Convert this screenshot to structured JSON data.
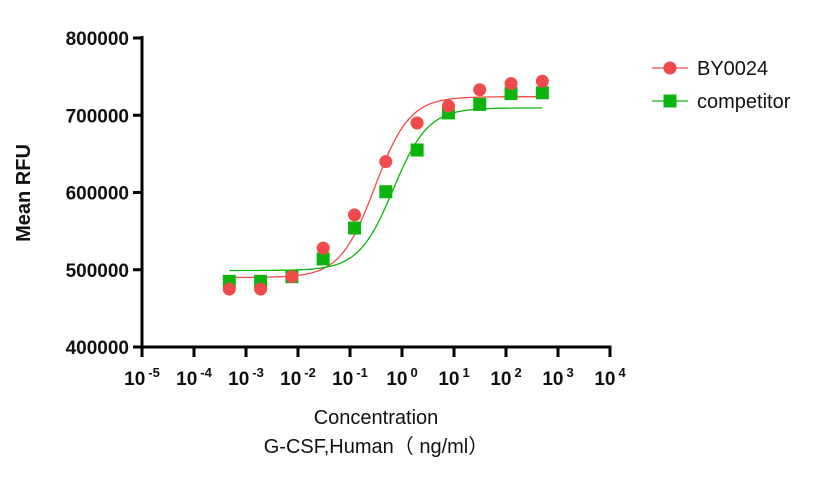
{
  "chart_data": {
    "type": "scatter",
    "title": "",
    "xlabel": "Concentration",
    "xlabel_line2": "G-CSF,Human（ ng/ml）",
    "ylabel": "Mean RFU",
    "xscale": "log",
    "xlim": [
      1e-05,
      10000
    ],
    "ylim": [
      400000,
      800000
    ],
    "x_ticks": [
      "10^-5",
      "10^-4",
      "10^-3",
      "10^-2",
      "10^-1",
      "10^0",
      "10^1",
      "10^2",
      "10^3",
      "10^4"
    ],
    "y_ticks": [
      "400000",
      "500000",
      "600000",
      "700000",
      "800000"
    ],
    "grid": false,
    "legend": "right",
    "x": [
      0.000477,
      0.00191,
      0.00763,
      0.0305,
      0.122,
      0.488,
      1.953,
      7.8125,
      31.25,
      125,
      500
    ],
    "series": [
      {
        "name": "BY0024",
        "marker": "circle",
        "color": "#f04a4a",
        "values": [
          475000,
          475000,
          491000,
          528000,
          571000,
          640000,
          690000,
          712000,
          733000,
          741000,
          744000
        ],
        "fit": {
          "bottom": 490000,
          "top": 724000,
          "ec50": 0.3,
          "hill": 1.3
        }
      },
      {
        "name": "competitor",
        "marker": "square",
        "color": "#0db40d",
        "values": [
          485000,
          485000,
          491000,
          514000,
          554000,
          601000,
          655000,
          703000,
          714000,
          728000,
          729000
        ],
        "fit": {
          "bottom": 499000,
          "top": 709500,
          "ec50": 0.68,
          "hill": 1.3
        }
      }
    ]
  }
}
